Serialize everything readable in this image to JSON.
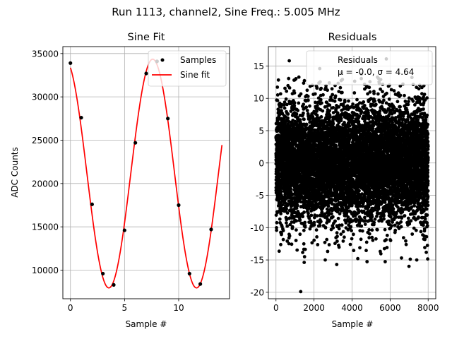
{
  "figure": {
    "suptitle": "Run 1113, channel2, Sine Freq.: 5.005 MHz"
  },
  "chart_data": [
    {
      "type": "line",
      "title": "Sine Fit",
      "xlabel": "Sample #",
      "ylabel": "ADC Counts",
      "xlim": [
        -0.7,
        14.7
      ],
      "ylim": [
        6700,
        35800
      ],
      "xticks": [
        0,
        5,
        10
      ],
      "yticks": [
        10000,
        15000,
        20000,
        25000,
        30000,
        35000
      ],
      "grid": true,
      "legend_position": "top-right",
      "series": [
        {
          "name": "Samples",
          "kind": "scatter",
          "color": "#000000",
          "x": [
            0,
            1,
            2,
            3,
            4,
            5,
            6,
            7,
            8,
            9,
            10,
            11,
            12,
            13
          ],
          "y": [
            33900,
            27600,
            17600,
            9600,
            8300,
            14600,
            24700,
            32700,
            34100,
            27500,
            17500,
            9600,
            8400,
            14700
          ]
        },
        {
          "name": "Sine fit",
          "kind": "line",
          "color": "#ff0000",
          "model": {
            "offset": 21150,
            "amplitude": 13200,
            "period": 8.1,
            "phase_x": 7.6,
            "x_start": 0,
            "x_end": 14
          }
        }
      ]
    },
    {
      "type": "scatter",
      "title": "Residuals",
      "xlabel": "Sample #",
      "ylabel": "",
      "xlim": [
        -400,
        8400
      ],
      "ylim": [
        -21,
        18
      ],
      "xticks": [
        0,
        2000,
        4000,
        6000,
        8000
      ],
      "yticks": [
        -20,
        -15,
        -10,
        -5,
        0,
        5,
        10,
        15
      ],
      "grid": true,
      "legend_position": "top-right",
      "series": [
        {
          "name": "Residuals",
          "color": "#000000",
          "n_points": 8000,
          "mean": 0.0,
          "std": 4.64,
          "outliers": [
            [
              1300,
              -19.9
            ],
            [
              700,
              15.8
            ],
            [
              5800,
              16.1
            ],
            [
              2300,
              14.6
            ],
            [
              4300,
              -14.8
            ],
            [
              6600,
              -14.7
            ],
            [
              7400,
              -15.0
            ],
            [
              1500,
              -14.5
            ]
          ]
        }
      ],
      "legend_stats": "μ = -0.0, σ = 4.64"
    }
  ]
}
